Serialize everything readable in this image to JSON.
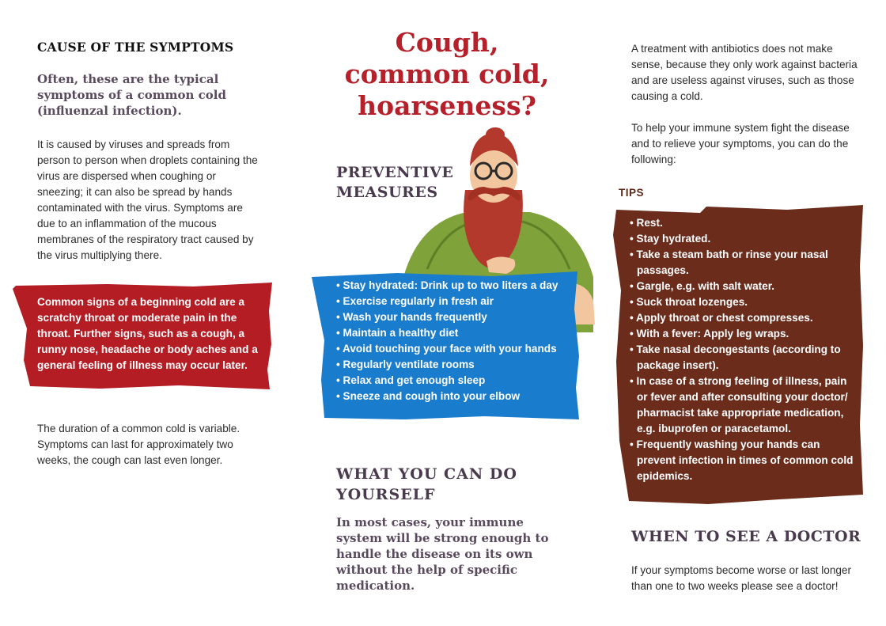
{
  "left": {
    "cause_title": "CAUSE OF THE SYMPTOMS",
    "cause_subtitle": "Often, these are the typical symptoms of a common cold (influenzal infection).",
    "cause_body": "It is caused by viruses and spreads from person to person when droplets containing the virus are dispersed when coughing or sneezing; it can also be spread by hands contaminated with the virus. Symptoms are due to an inflammation of the mucous membranes of the respiratory tract caused by the virus multiplying there.",
    "signs_box": "Common signs of a beginning cold are a scratchy throat or moderate pain in the throat. Further signs, such as a cough, a runny nose, headache or body aches and a general feeling of illness may occur later.",
    "duration": "The duration of a common cold is variable. Symptoms can last for approximately two weeks, the cough can last even longer."
  },
  "middle": {
    "title_line1": "Cough,",
    "title_line2": "common cold,",
    "title_line3": "hoarseness?",
    "preventive_line1": "PREVENTIVE",
    "preventive_line2": "MEASURES",
    "preventive_items": [
      "Stay hydrated: Drink up to two liters a day",
      "Exercise regularly in fresh air",
      "Wash your hands frequently",
      "Maintain a healthy diet",
      "Avoid touching your face with your hands",
      "Regularly ventilate rooms",
      "Relax and get enough sleep",
      "Sneeze and cough into your elbow"
    ],
    "whatcan_line1": "WHAT YOU CAN DO",
    "whatcan_line2": "YOURSELF",
    "whatcan_body": "In most cases, your immune system will be strong enough to handle the disease on its own without the help of specific medication.",
    "illustration_icon": "bearded-man-illustration"
  },
  "right": {
    "antibiotics": "A treatment with antibiotics does not make sense, because they only work against bacteria and are useless against viruses, such as those causing a cold.",
    "immune": "To help your immune system fight the disease and to relieve your symptoms, you can do the following:",
    "tips_label": "TIPS",
    "tips": [
      "Rest.",
      "Stay hydrated.",
      "Take a steam bath or rinse your nasal passages.",
      "Gargle, e.g. with salt water.",
      "Suck throat lozenges.",
      "Apply throat or chest compresses.",
      "With a fever: Apply leg wraps.",
      "Take nasal decongestants (according to package insert).",
      "In case of a strong feeling of illness, pain or fever and after consulting your doctor/ pharmacist take appropriate medication, e.g. ibuprofen or paracetamol.",
      "Frequently washing your hands can prevent infection in times of common cold epidemics."
    ],
    "doctor_title": "WHEN TO SEE A DOCTOR",
    "doctor_text": "If your symptoms become worse or last longer than one to two weeks please see a doctor!"
  },
  "colors": {
    "red_box": "#b41d24",
    "blue_box": "#1a7ccc",
    "brown_box": "#6b2c1c",
    "title_red": "#b5202a",
    "heading_purple": "#4a3a4e"
  }
}
